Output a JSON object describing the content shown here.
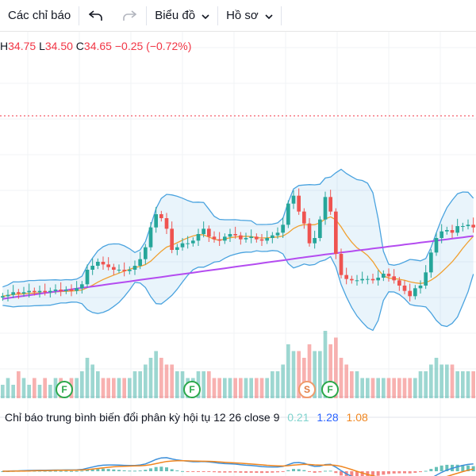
{
  "toolbar": {
    "indicators_label": "Các chỉ báo",
    "undo_icon": "undo-icon",
    "redo_icon": "redo-icon",
    "chart_label": "Biểu đồ",
    "profile_label": "Hồ sơ"
  },
  "ohlc": {
    "high_label": "H",
    "high": "34.75",
    "low_label": "L",
    "low": "34.50",
    "close_label": "C",
    "close": "34.65",
    "change": "−0.25 (−0.72%)"
  },
  "macd": {
    "label": "Chỉ báo trung bình biến đổi phân kỳ hội tụ 12 26 close 9",
    "hist": "0.21",
    "macd": "1.28",
    "signal": "1.08"
  },
  "markers": [
    {
      "text": "F",
      "kind": "F"
    },
    {
      "text": "F",
      "kind": "F"
    },
    {
      "text": "S",
      "kind": "S"
    },
    {
      "text": "F",
      "kind": "F"
    }
  ],
  "colors": {
    "up": "#26a69a",
    "down": "#ef5350",
    "bb": "#4aa3df",
    "ma": "#f0a030",
    "ma200": "#b44cf0",
    "macd": "#3d8fd9",
    "signal": "#f0861f"
  },
  "chart_data": {
    "type": "candlestick",
    "price_close": [
      30.6,
      30.7,
      30.9,
      30.8,
      30.9,
      31.0,
      30.9,
      31.0,
      30.9,
      31.0,
      31.1,
      31.0,
      31.1,
      31.0,
      31.2,
      31.5,
      32.6,
      32.9,
      33.2,
      33.0,
      32.8,
      32.6,
      32.6,
      32.5,
      32.6,
      32.9,
      33.4,
      34.3,
      35.8,
      36.8,
      36.5,
      35.7,
      34.1,
      34.3,
      34.6,
      34.6,
      34.8,
      35.3,
      35.7,
      35.1,
      34.9,
      34.8,
      35.1,
      35.3,
      35.2,
      34.9,
      35.0,
      35.1,
      34.9,
      34.8,
      35.0,
      35.2,
      35.4,
      36.0,
      37.6,
      38.2,
      37.0,
      36.1,
      34.6,
      35.0,
      36.4,
      38.1,
      37.0,
      33.8,
      32.2,
      31.9,
      31.8,
      31.8,
      31.9,
      31.9,
      31.8,
      32.0,
      32.3,
      32.1,
      31.8,
      31.4,
      31.0,
      30.6,
      31.2,
      31.4,
      32.4,
      33.9,
      35.0,
      35.5,
      35.6,
      35.4,
      35.9,
      35.9,
      36.0,
      35.8
    ],
    "volume_relative": [
      0.2,
      0.3,
      0.2,
      0.4,
      0.3,
      0.2,
      0.3,
      0.2,
      0.3,
      0.2,
      0.3,
      0.3,
      0.2,
      0.3,
      0.3,
      0.4,
      0.6,
      0.5,
      0.4,
      0.3,
      0.3,
      0.3,
      0.3,
      0.3,
      0.3,
      0.4,
      0.4,
      0.5,
      0.6,
      0.7,
      0.6,
      0.5,
      0.5,
      0.4,
      0.4,
      0.3,
      0.3,
      0.4,
      0.4,
      0.4,
      0.3,
      0.3,
      0.3,
      0.3,
      0.3,
      0.3,
      0.3,
      0.3,
      0.3,
      0.3,
      0.3,
      0.4,
      0.4,
      0.5,
      0.8,
      0.7,
      0.7,
      0.6,
      0.8,
      0.7,
      0.7,
      1.0,
      0.8,
      0.9,
      0.6,
      0.5,
      0.4,
      0.4,
      0.3,
      0.3,
      0.3,
      0.3,
      0.3,
      0.3,
      0.3,
      0.3,
      0.3,
      0.3,
      0.3,
      0.4,
      0.4,
      0.5,
      0.6,
      0.5,
      0.5,
      0.5,
      0.4,
      0.4,
      0.4,
      0.4
    ]
  }
}
